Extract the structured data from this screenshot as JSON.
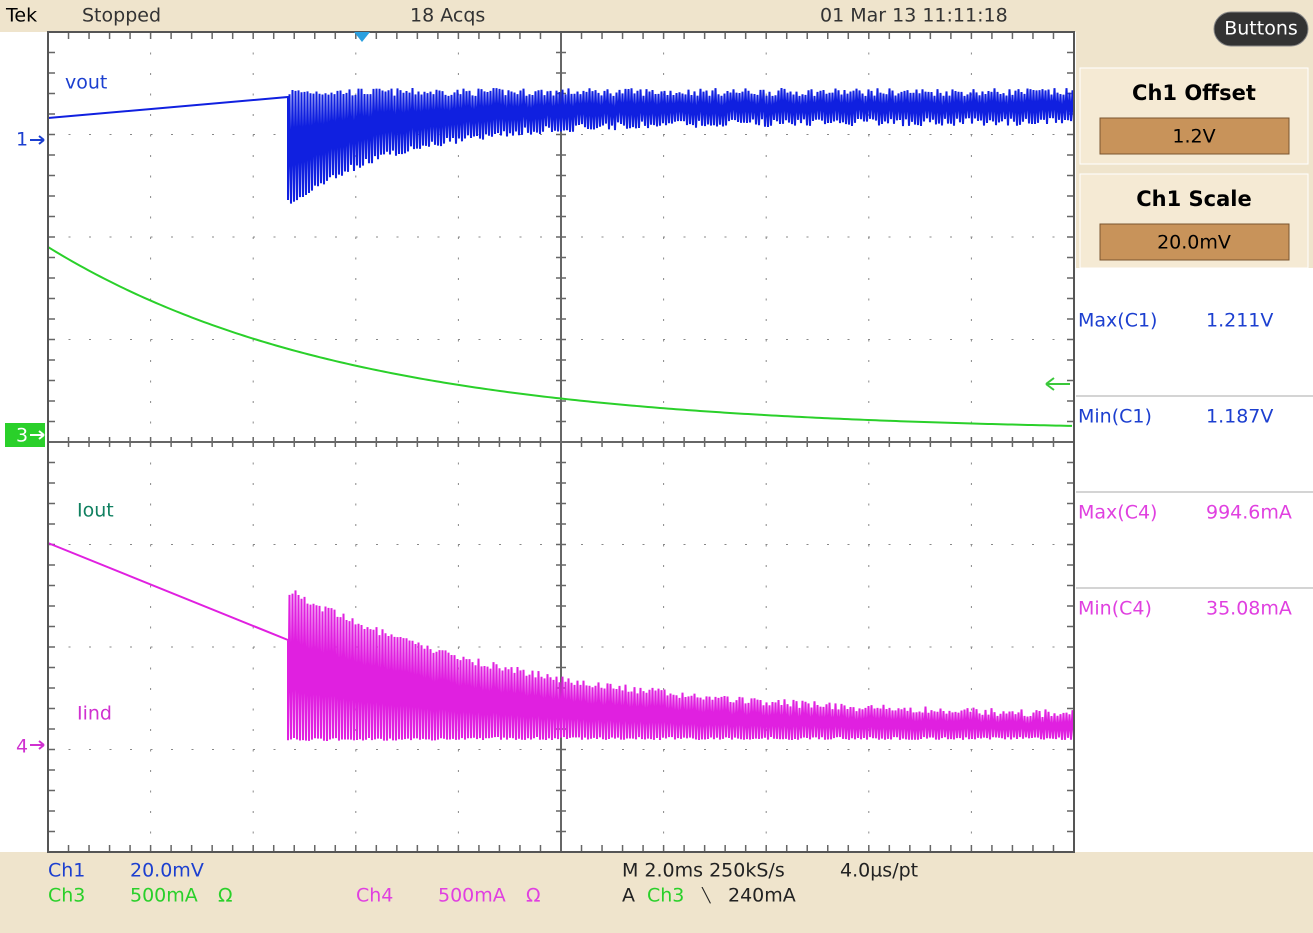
{
  "header": {
    "brand": "Tek",
    "status": "Stopped",
    "acquisitions": "18 Acqs",
    "timestamp": "01 Mar 13 11:11:18"
  },
  "side_panel": {
    "button": "Buttons",
    "settings": [
      {
        "label": "Ch1 Offset",
        "value": "1.2V"
      },
      {
        "label": "Ch1 Scale",
        "value": "20.0mV"
      }
    ],
    "measurements": [
      {
        "label": "Max(C1)",
        "value": "1.211V"
      },
      {
        "label": "Min(C1)",
        "value": "1.187V"
      },
      {
        "label": "Max(C4)",
        "value": "994.6mA"
      },
      {
        "label": "Min(C4)",
        "value": "35.08mA"
      }
    ]
  },
  "graticule": {
    "trace_labels": [
      "vout",
      "Iout",
      "Iind"
    ],
    "channel_markers": [
      "1",
      "3",
      "4"
    ]
  },
  "footer": {
    "ch1": {
      "name": "Ch1",
      "scale": "20.0mV"
    },
    "ch3": {
      "name": "Ch3",
      "scale": "500mA",
      "coupling": "Ω"
    },
    "ch4": {
      "name": "Ch4",
      "scale": "500mA",
      "coupling": "Ω"
    },
    "timebase": "M 2.0ms 250kS/s",
    "resolution": "4.0µs/pt",
    "trigger": {
      "mode": "A",
      "source": "Ch3",
      "slope": "╲",
      "level": "240mA"
    }
  }
}
